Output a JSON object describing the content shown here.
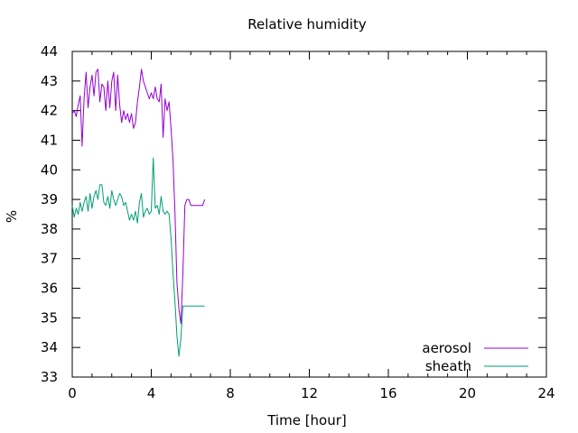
{
  "chart_data": {
    "type": "line",
    "title": "Relative humidity",
    "xlabel": "Time [hour]",
    "ylabel": "%",
    "xlim": [
      0,
      24
    ],
    "ylim": [
      33,
      44
    ],
    "xticks": [
      0,
      4,
      8,
      12,
      16,
      20,
      24
    ],
    "yticks": [
      33,
      34,
      35,
      36,
      37,
      38,
      39,
      40,
      41,
      42,
      43,
      44
    ],
    "grid": false,
    "legend_position": "bottom-right",
    "series": [
      {
        "name": "aerosol",
        "color": "#9400d3",
        "x": [
          0.0,
          0.1,
          0.2,
          0.3,
          0.4,
          0.5,
          0.6,
          0.7,
          0.8,
          0.9,
          1.0,
          1.1,
          1.2,
          1.3,
          1.4,
          1.5,
          1.6,
          1.7,
          1.8,
          1.9,
          2.0,
          2.1,
          2.2,
          2.3,
          2.4,
          2.5,
          2.6,
          2.7,
          2.8,
          2.9,
          3.0,
          3.1,
          3.2,
          3.3,
          3.4,
          3.5,
          3.6,
          3.7,
          3.8,
          3.9,
          4.0,
          4.1,
          4.2,
          4.3,
          4.4,
          4.5,
          4.6,
          4.7,
          4.8,
          4.9,
          5.0,
          5.1,
          5.2,
          5.3,
          5.4,
          5.5,
          5.6,
          5.7,
          5.8,
          5.9,
          6.0,
          6.1,
          6.2,
          6.3,
          6.4,
          6.5,
          6.6,
          6.7
        ],
        "y": [
          41.9,
          42.0,
          41.8,
          42.2,
          42.5,
          40.8,
          42.4,
          43.3,
          42.1,
          42.8,
          43.2,
          42.5,
          43.3,
          43.4,
          42.3,
          42.9,
          42.8,
          42.0,
          43.0,
          42.1,
          43.0,
          43.3,
          42.0,
          43.2,
          42.2,
          41.6,
          42.0,
          41.7,
          41.9,
          41.6,
          41.9,
          41.4,
          41.6,
          42.3,
          42.8,
          43.4,
          43.0,
          42.8,
          42.6,
          42.4,
          42.6,
          42.4,
          42.8,
          42.4,
          42.3,
          42.9,
          41.1,
          42.4,
          42.0,
          42.3,
          41.4,
          40.3,
          38.5,
          36.2,
          35.3,
          34.8,
          36.5,
          38.8,
          39.0,
          39.0,
          38.8,
          38.8,
          38.8,
          38.8,
          38.8,
          38.8,
          38.8,
          39.0
        ]
      },
      {
        "name": "sheath",
        "color": "#009e73",
        "x": [
          0.0,
          0.1,
          0.2,
          0.3,
          0.4,
          0.5,
          0.6,
          0.7,
          0.8,
          0.9,
          1.0,
          1.1,
          1.2,
          1.3,
          1.4,
          1.5,
          1.6,
          1.7,
          1.8,
          1.9,
          2.0,
          2.1,
          2.2,
          2.3,
          2.4,
          2.5,
          2.6,
          2.7,
          2.8,
          2.9,
          3.0,
          3.1,
          3.2,
          3.3,
          3.4,
          3.5,
          3.6,
          3.7,
          3.8,
          3.9,
          4.0,
          4.1,
          4.2,
          4.3,
          4.4,
          4.5,
          4.6,
          4.7,
          4.8,
          4.9,
          5.0,
          5.1,
          5.2,
          5.3,
          5.4,
          5.5,
          5.6,
          5.7,
          5.8,
          5.9,
          6.0,
          6.1,
          6.2,
          6.3,
          6.4,
          6.5,
          6.6,
          6.7
        ],
        "y": [
          38.8,
          38.4,
          38.7,
          38.5,
          38.9,
          38.6,
          38.9,
          39.1,
          38.6,
          39.2,
          38.7,
          39.1,
          39.3,
          39.0,
          39.5,
          39.5,
          38.9,
          38.8,
          39.1,
          38.7,
          39.3,
          39.0,
          38.8,
          39.0,
          39.2,
          39.1,
          38.8,
          38.9,
          38.6,
          38.3,
          38.5,
          38.3,
          38.6,
          38.2,
          38.9,
          39.2,
          38.4,
          38.6,
          38.7,
          38.5,
          38.6,
          40.4,
          38.7,
          38.8,
          38.5,
          39.1,
          38.6,
          38.5,
          38.6,
          38.5,
          37.7,
          36.5,
          35.5,
          34.4,
          33.7,
          34.3,
          35.4,
          35.4,
          35.4,
          35.4,
          35.4,
          35.4,
          35.4,
          35.4,
          35.4,
          35.4,
          35.4,
          35.4
        ]
      }
    ]
  }
}
